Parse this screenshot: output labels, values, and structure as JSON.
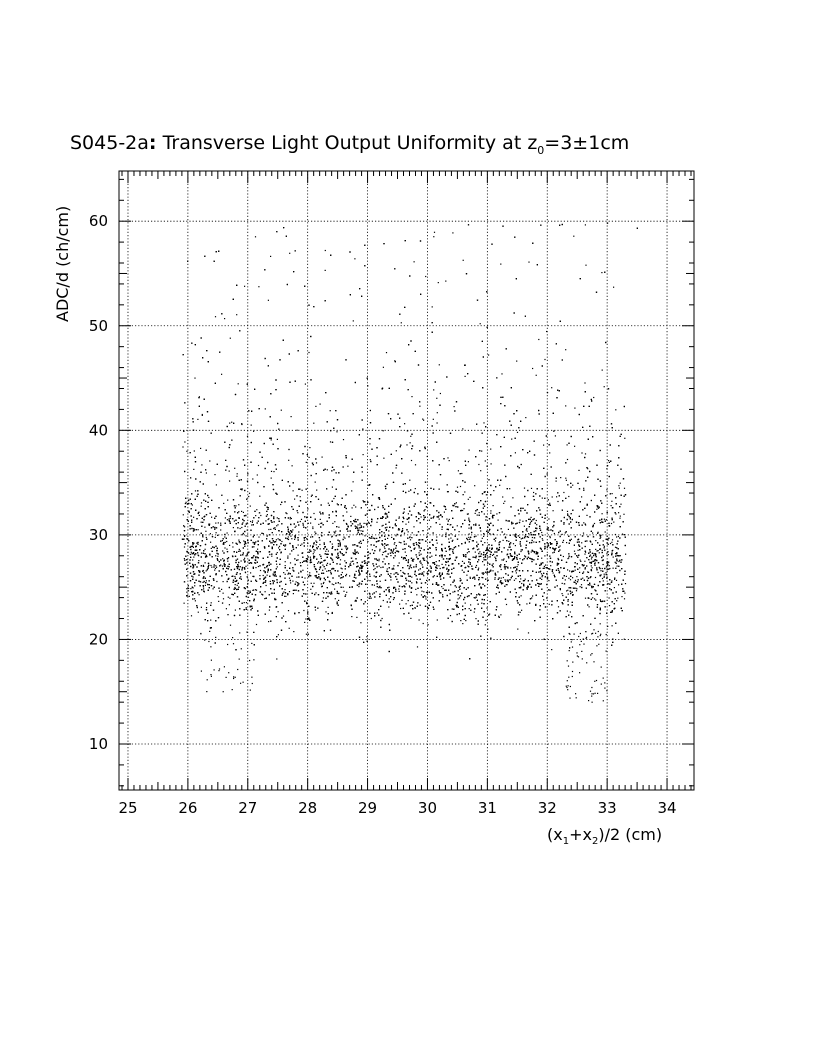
{
  "chart_data": {
    "type": "scatter",
    "title_main": "S045-2a",
    "title_colon": ":",
    "title_rest": " Transverse Light Output Uniformity at z",
    "title_sub": "0",
    "title_tail": "=3±1cm",
    "xlabel_parts": {
      "p1": "(x",
      "sub1": "1",
      "p2": "+x",
      "sub2": "2",
      "p3": ")/2 (cm)"
    },
    "ylabel": "ADC/d (ch/cm)",
    "xlim": [
      24.85,
      34.45
    ],
    "ylim": [
      5.6,
      64.8
    ],
    "xticks": [
      25,
      26,
      27,
      28,
      29,
      30,
      31,
      32,
      33,
      34
    ],
    "xtick_labels": [
      "25",
      "26",
      "27",
      "28",
      "29",
      "30",
      "31",
      "32",
      "33",
      "34"
    ],
    "yticks": [
      10,
      20,
      30,
      40,
      50,
      60
    ],
    "ytick_labels": [
      "10",
      "20",
      "30",
      "40",
      "50",
      "60"
    ],
    "grid": true,
    "series": [
      {
        "points_count": 9000,
        "x_range": [
          25.9,
          33.3
        ],
        "core_y_mean": 27.5,
        "core_y_sigma": 2.8,
        "tail_y_max": 60,
        "sparse_low_region": {
          "x": [
            32.3,
            33.0
          ],
          "y_min": 14
        }
      }
    ]
  }
}
